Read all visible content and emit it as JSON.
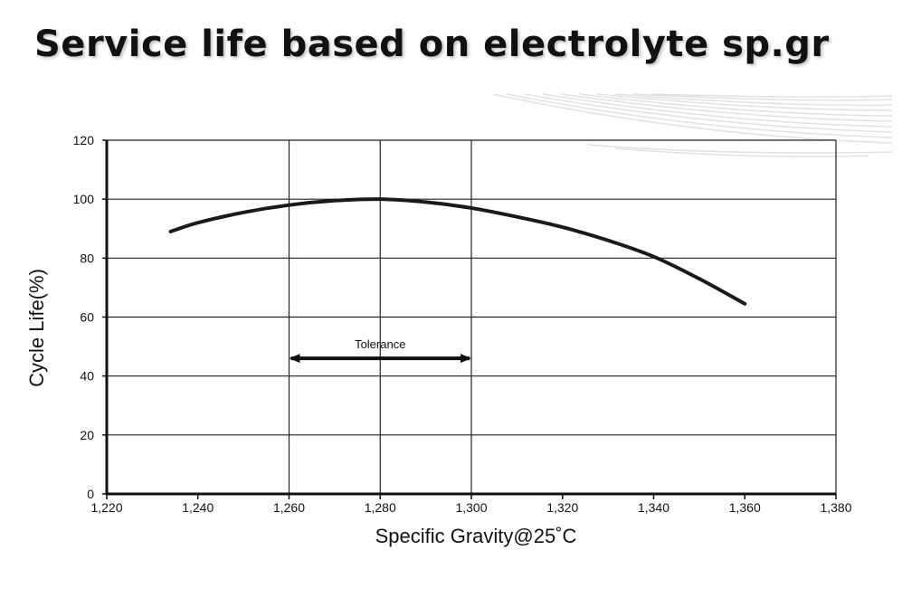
{
  "slide": {
    "title": "Service life based on electrolyte sp.gr"
  },
  "chart_data": {
    "type": "line",
    "title": "",
    "xlabel": "Specific Gravity@25˚C",
    "ylabel": "Cycle Life(%)",
    "xlim": [
      1.22,
      1.38
    ],
    "ylim": [
      0,
      120
    ],
    "x_ticks": [
      1.22,
      1.24,
      1.26,
      1.28,
      1.3,
      1.32,
      1.34,
      1.36,
      1.38
    ],
    "x_tick_labels": [
      "1,220",
      "1,240",
      "1,260",
      "1,280",
      "1,300",
      "1,320",
      "1,340",
      "1,360",
      "1,380"
    ],
    "y_ticks": [
      0,
      20,
      40,
      60,
      80,
      100,
      120
    ],
    "y_tick_labels": [
      "0",
      "20",
      "40",
      "60",
      "80",
      "100",
      "120"
    ],
    "grid": "horizontal at y ticks; vertical at 1,260 / 1,280 / 1,300",
    "vertical_gridlines": [
      1.26,
      1.28,
      1.3
    ],
    "series": [
      {
        "x": [
          1.234,
          1.24,
          1.25,
          1.26,
          1.27,
          1.28,
          1.29,
          1.3,
          1.31,
          1.32,
          1.33,
          1.34,
          1.35,
          1.36
        ],
        "y": [
          89,
          92,
          95.5,
          98,
          99.5,
          100,
          99,
          97,
          94,
          90.5,
          86,
          80.5,
          73,
          64.5
        ]
      }
    ],
    "annotations": [
      {
        "text": "Tolerance",
        "type": "double-arrow",
        "x_from": 1.26,
        "x_to": 1.3,
        "y": 46
      }
    ],
    "colors": {
      "line": "#1a1a1a",
      "axis": "#111111",
      "grid": "#222222"
    }
  }
}
